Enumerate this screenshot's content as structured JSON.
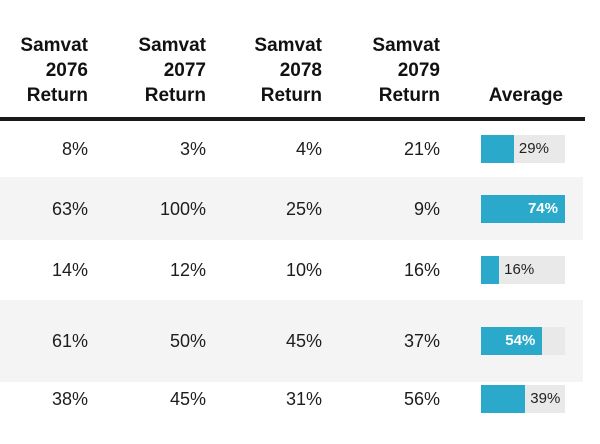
{
  "table": {
    "headers": [
      {
        "id": "samvat-2076-return",
        "label": "Samvat\n2076\nReturn"
      },
      {
        "id": "samvat-2077-return",
        "label": "Samvat\n2077\nReturn"
      },
      {
        "id": "samvat-2078-return",
        "label": "Samvat\n2078\nReturn"
      },
      {
        "id": "samvat-2079-return",
        "label": "Samvat\n2079\nReturn"
      },
      {
        "id": "average",
        "label": "Average"
      }
    ],
    "rows": [
      {
        "returns": [
          "8%",
          "3%",
          "4%",
          "21%"
        ],
        "average_label": "29%",
        "average_value": 29
      },
      {
        "returns": [
          "63%",
          "100%",
          "25%",
          "9%"
        ],
        "average_label": "74%",
        "average_value": 74
      },
      {
        "returns": [
          "14%",
          "12%",
          "10%",
          "16%"
        ],
        "average_label": "16%",
        "average_value": 16
      },
      {
        "returns": [
          "61%",
          "50%",
          "45%",
          "37%"
        ],
        "average_label": "54%",
        "average_value": 54
      },
      {
        "returns": [
          "38%",
          "45%",
          "31%",
          "56%"
        ],
        "average_label": "39%",
        "average_value": 39
      }
    ],
    "bar_scale_max": 74
  },
  "colors": {
    "bar_fill": "#2aa9cb",
    "bar_track": "#e9e9ea",
    "row_alt_background": "#f4f4f5",
    "header_rule": "#1a1a1a",
    "text": "#1d1d1d",
    "bar_label_inside": "#ffffff"
  },
  "chart_data": {
    "type": "table",
    "columns": [
      "Samvat 2076 Return",
      "Samvat 2077 Return",
      "Samvat 2078 Return",
      "Samvat 2079 Return",
      "Average"
    ],
    "rows_percent": [
      [
        8,
        3,
        4,
        21,
        29
      ],
      [
        63,
        100,
        25,
        9,
        74
      ],
      [
        14,
        12,
        10,
        16,
        16
      ],
      [
        61,
        50,
        45,
        37,
        54
      ],
      [
        38,
        45,
        31,
        56,
        39
      ]
    ],
    "average_column_bars": {
      "type": "bar",
      "values": [
        29,
        74,
        16,
        54,
        39
      ],
      "unit": "%",
      "max_scale": 74,
      "bar_color": "#2aa9cb",
      "track_color": "#e9e9ea",
      "label_position_rule": "label sits inside bar (white) when fill > 60% of track, otherwise right of fill (dark)"
    },
    "title": "",
    "notes": "Returns table with embedded horizontal bar chart in the Average column; bars scaled so the maximum average (74%) fills the track."
  }
}
